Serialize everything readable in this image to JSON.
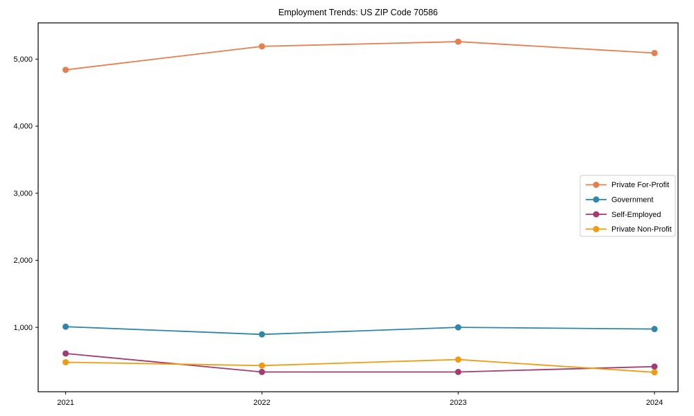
{
  "figure": {
    "background": "#ffffff",
    "axis_color": "#000000",
    "text_color": "#000000"
  },
  "chart_data": {
    "type": "line",
    "title": "Employment Trends: US ZIP Code 70586",
    "xlabel": "",
    "ylabel": "",
    "x": [
      2021,
      2022,
      2023,
      2024
    ],
    "x_tick_labels": [
      "2021",
      "2022",
      "2023",
      "2024"
    ],
    "series": [
      {
        "name": "Private For-Profit",
        "color": "#E87D4E",
        "values": [
          4840,
          5190,
          5260,
          5090
        ]
      },
      {
        "name": "Government",
        "color": "#2E86AB",
        "values": [
          1010,
          895,
          1000,
          975
        ]
      },
      {
        "name": "Self-Employed",
        "color": "#A23B72",
        "values": [
          610,
          335,
          335,
          415
        ]
      },
      {
        "name": "Private Non-Profit",
        "color": "#F09C10",
        "values": [
          480,
          430,
          520,
          330
        ]
      }
    ],
    "xlim": [
      2020.86,
      2024.12
    ],
    "ylim": [
      40,
      5540
    ],
    "yticks": [
      1000,
      2000,
      3000,
      4000,
      5000
    ],
    "ytick_labels": [
      "1,000",
      "2,000",
      "3,000",
      "4,000",
      "5,000"
    ],
    "grid": false,
    "marker": "circle",
    "legend": {
      "position": "right-center",
      "background": "#ffffff",
      "border_color": "#cccccc",
      "entries": [
        "Private For-Profit",
        "Government",
        "Self-Employed",
        "Private Non-Profit"
      ]
    }
  }
}
